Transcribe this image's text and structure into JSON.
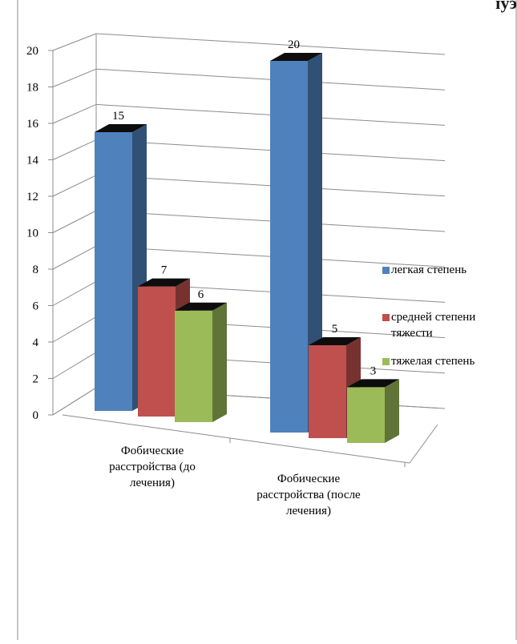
{
  "header_fragment": "ɪуэ",
  "chart_data": {
    "type": "bar",
    "categories": [
      "Фобические расстройства (до лечения)",
      "Фобические расстройства (после лечения)"
    ],
    "series": [
      {
        "name": "легкая степень",
        "values": [
          15,
          20
        ],
        "color": "#4F81BD"
      },
      {
        "name": "средней степени тяжести",
        "values": [
          7,
          5
        ],
        "color": "#C0504D"
      },
      {
        "name": "тяжелая степень",
        "values": [
          6,
          3
        ],
        "color": "#9BBB59"
      }
    ],
    "ylim": [
      0,
      20
    ],
    "yticks": [
      "0",
      "2",
      "4",
      "6",
      "8",
      "10",
      "12",
      "14",
      "16",
      "18",
      "20"
    ],
    "grid": true,
    "legend_position": "right",
    "style": "3d-column",
    "data_labels": [
      "15",
      "7",
      "6",
      "20",
      "5",
      "3"
    ]
  },
  "category_labels": [
    [
      "Фобические",
      "расстройства  (до",
      "лечения)"
    ],
    [
      "Фобические",
      "расстройства  (после",
      "лечения)"
    ]
  ],
  "legend": [
    {
      "label": "легкая степень",
      "color": "#4F81BD"
    },
    {
      "label": "средней степени",
      "label2": "тяжести",
      "color": "#C0504D"
    },
    {
      "label": "тяжелая степень",
      "color": "#9BBB59"
    }
  ]
}
